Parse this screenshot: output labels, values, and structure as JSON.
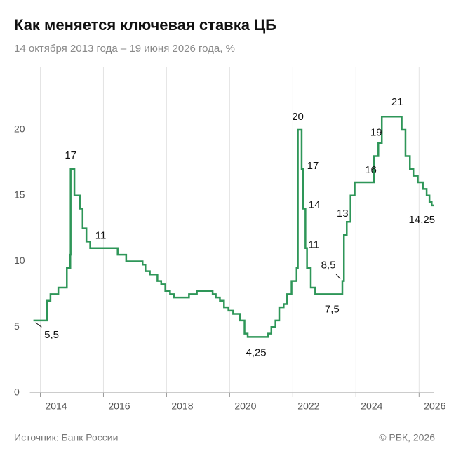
{
  "chart_data": {
    "type": "step",
    "title": "Как меняется ключевая ставка ЦБ",
    "subtitle": "14 октября 2013 года – 19 июня 2026 года, %",
    "source": "Источник: Банк России",
    "credit": "© РБК, 2026",
    "color": "#2e9658",
    "x": [
      2013.78,
      2014.21,
      2014.32,
      2014.57,
      2014.84,
      2014.95,
      2014.96,
      2015.08,
      2015.25,
      2015.34,
      2015.46,
      2015.58,
      2016.45,
      2016.72,
      2017.24,
      2017.33,
      2017.47,
      2017.71,
      2017.83,
      2017.96,
      2018.11,
      2018.24,
      2018.71,
      2018.96,
      2019.46,
      2019.56,
      2019.69,
      2019.82,
      2019.96,
      2020.11,
      2020.32,
      2020.47,
      2020.57,
      2021.22,
      2021.32,
      2021.45,
      2021.57,
      2021.71,
      2021.82,
      2021.96,
      2022.12,
      2022.16,
      2022.28,
      2022.33,
      2022.4,
      2022.45,
      2022.57,
      2022.71,
      2023.57,
      2023.62,
      2023.71,
      2023.83,
      2023.96,
      2024.57,
      2024.71,
      2024.82,
      2025.45,
      2025.57,
      2025.71,
      2025.82,
      2025.96,
      2026.12,
      2026.24,
      2026.33,
      2026.4,
      2026.46
    ],
    "values": [
      5.5,
      7,
      7.5,
      8,
      9.5,
      10.5,
      17,
      15,
      14,
      12.5,
      11.5,
      11,
      10.5,
      10,
      9.75,
      9.25,
      9,
      8.5,
      8.25,
      7.75,
      7.5,
      7.25,
      7.5,
      7.75,
      7.5,
      7.25,
      7,
      6.5,
      6.25,
      6,
      5.5,
      4.5,
      4.25,
      4.5,
      5,
      5.5,
      6.5,
      6.75,
      7.5,
      8.5,
      9.5,
      20,
      17,
      14,
      11,
      9.5,
      8,
      7.5,
      8.5,
      12,
      13,
      15,
      16,
      18,
      19,
      21,
      20,
      18,
      17,
      16.5,
      16,
      15.5,
      15,
      14.5,
      14.25,
      14.25
    ],
    "value_labels": [
      "5,5",
      null,
      null,
      null,
      null,
      null,
      "17",
      null,
      null,
      null,
      null,
      "11",
      null,
      null,
      null,
      null,
      null,
      null,
      null,
      null,
      null,
      null,
      null,
      null,
      null,
      null,
      null,
      null,
      null,
      null,
      null,
      null,
      "4,25",
      null,
      null,
      null,
      null,
      null,
      null,
      null,
      null,
      "20",
      "17",
      "14",
      "11",
      null,
      null,
      "7,5",
      "8,5",
      null,
      "13",
      null,
      "16",
      null,
      "19",
      "21",
      null,
      null,
      null,
      null,
      null,
      null,
      null,
      null,
      "14,25",
      null
    ],
    "xlim": [
      2013.78,
      2026.46
    ],
    "xticks": [
      2014,
      2016,
      2018,
      2020,
      2022,
      2024,
      2026
    ],
    "ylim": [
      0,
      24.8
    ],
    "yticks": [
      0,
      5,
      10,
      15,
      20
    ],
    "grid": true
  }
}
